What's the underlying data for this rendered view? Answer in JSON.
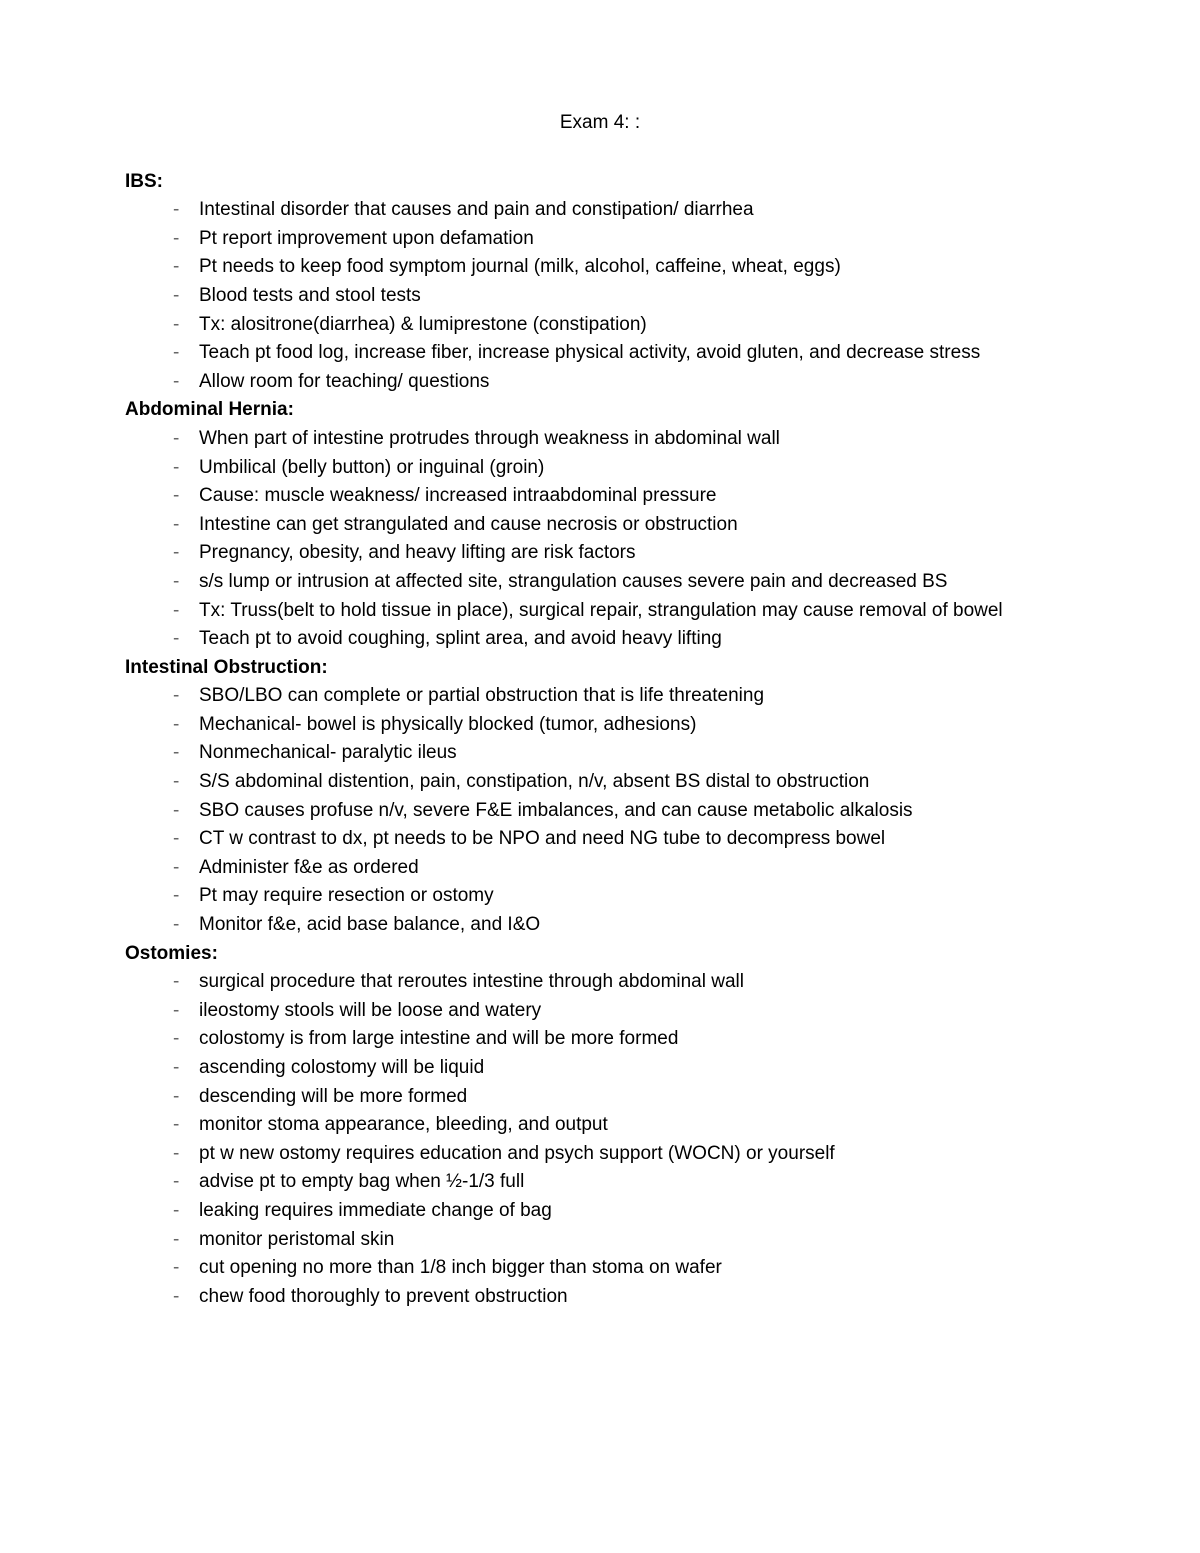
{
  "title": "Exam 4: :",
  "sections": [
    {
      "heading": "IBS:",
      "items": [
        "Intestinal disorder that causes and pain and constipation/ diarrhea",
        "Pt report improvement upon defamation",
        "Pt needs to keep food symptom journal (milk, alcohol, caffeine, wheat, eggs)",
        "Blood tests and stool tests",
        "Tx: alositrone(diarrhea) & lumiprestone (constipation)",
        "Teach pt food log, increase fiber, increase physical activity, avoid gluten, and decrease stress",
        "Allow room for teaching/ questions"
      ]
    },
    {
      "heading": "Abdominal Hernia:",
      "items": [
        "When part of intestine protrudes through weakness in abdominal wall",
        "Umbilical (belly button) or inguinal (groin)",
        "Cause: muscle weakness/ increased intraabdominal pressure",
        "Intestine can get strangulated and cause necrosis or obstruction",
        "Pregnancy, obesity, and heavy lifting are risk factors",
        "s/s lump or intrusion at affected site, strangulation causes severe pain and decreased BS",
        "Tx: Truss(belt to hold tissue in place), surgical repair, strangulation may cause removal of bowel",
        "Teach pt to avoid coughing, splint area, and avoid heavy lifting"
      ]
    },
    {
      "heading": "Intestinal Obstruction:",
      "items": [
        "SBO/LBO can complete or partial obstruction that is life threatening",
        "Mechanical- bowel is physically blocked (tumor, adhesions)",
        "Nonmechanical- paralytic ileus",
        "S/S abdominal distention, pain, constipation, n/v, absent BS distal to obstruction",
        "SBO causes profuse n/v, severe F&E imbalances, and can cause metabolic alkalosis",
        "CT w contrast to dx, pt needs  to be NPO and need NG tube to decompress bowel",
        "Administer f&e as ordered",
        "Pt may require resection or ostomy",
        "Monitor f&e, acid base balance, and I&O"
      ]
    },
    {
      "heading": "Ostomies:",
      "items": [
        "surgical procedure that reroutes intestine through abdominal wall",
        "ileostomy stools will be loose and watery",
        "colostomy is from large intestine and will be more formed",
        "ascending colostomy will be liquid",
        "descending will be more formed",
        "monitor stoma appearance, bleeding, and output",
        "pt w new ostomy requires education and psych support (WOCN) or yourself",
        "advise pt to empty bag when ½-1/3 full",
        "leaking requires immediate change of bag",
        "monitor peristomal skin",
        "cut opening no more than 1/8 inch bigger than stoma on wafer",
        "chew food thoroughly to prevent obstruction"
      ]
    }
  ]
}
